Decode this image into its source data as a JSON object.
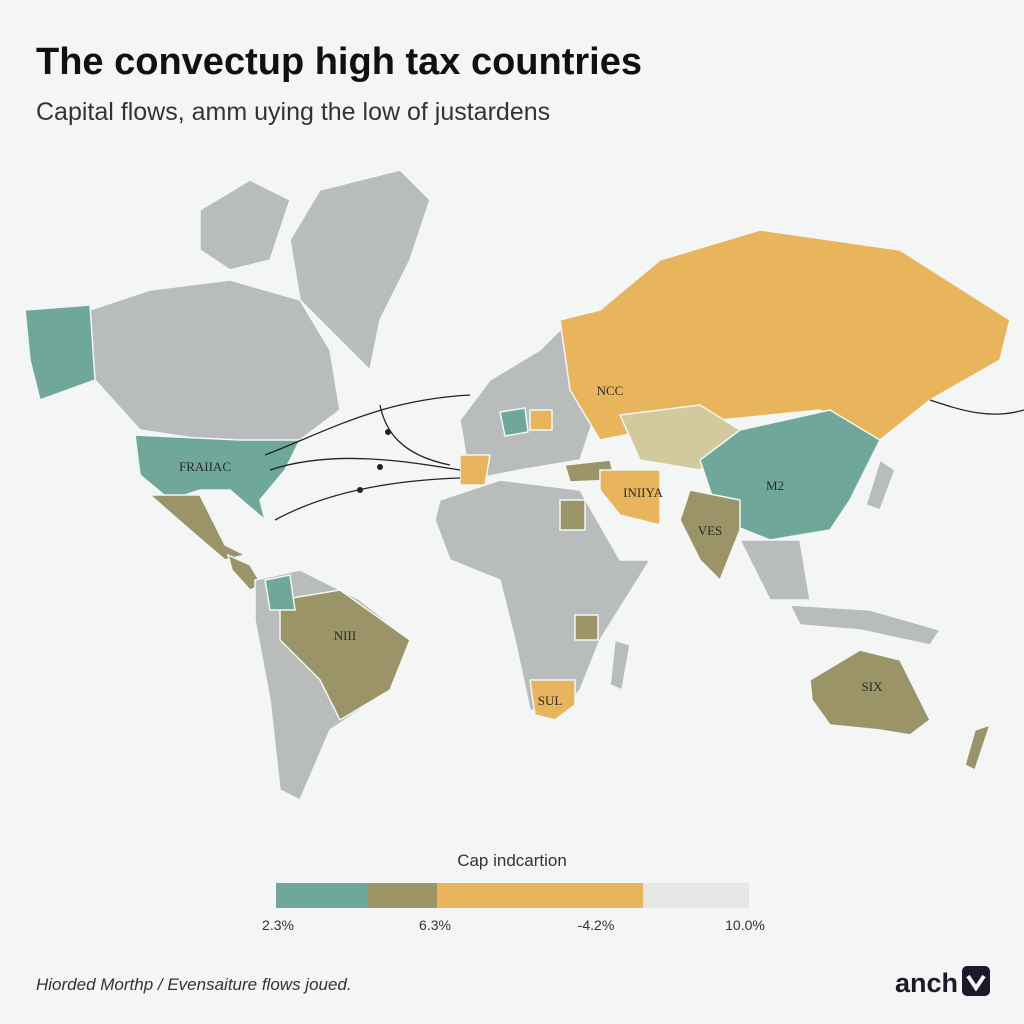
{
  "header": {
    "title": "The convectup high tax countries",
    "subtitle": "Capital flows, amm uying the low of justardens"
  },
  "map": {
    "labels": [
      "FRAIIAC",
      "NCC",
      "M2",
      "VES",
      "INIIYA",
      "NIII",
      "SIX",
      "SUL"
    ]
  },
  "legend": {
    "title": "Cap indcartion",
    "labels": [
      "2.3%",
      "6.3%",
      "-4.2%",
      "10.0%"
    ]
  },
  "footer": {
    "source": "Hiorded Morthp / Evensaiture flows joued.",
    "logo": "anch"
  }
}
